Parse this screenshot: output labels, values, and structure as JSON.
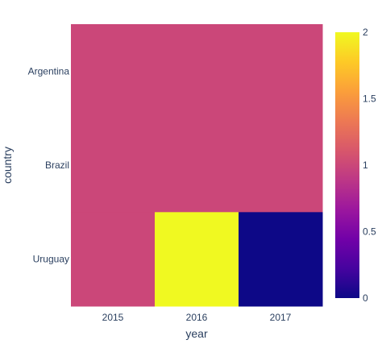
{
  "chart_data": {
    "type": "heatmap",
    "x": [
      "2015",
      "2016",
      "2017"
    ],
    "y": [
      "Argentina",
      "Brazil",
      "Uruguay"
    ],
    "z": [
      [
        1,
        1,
        1
      ],
      [
        1,
        1,
        1
      ],
      [
        1,
        2,
        0
      ]
    ],
    "xlabel": "year",
    "ylabel": "country",
    "zlim": [
      0,
      2
    ],
    "colorbar_ticks": [
      "0",
      "0.5",
      "1",
      "1.5",
      "2"
    ],
    "colorscale": [
      "#0d0887",
      "#46039f",
      "#7201a8",
      "#9c179e",
      "#bd3786",
      "#d8576b",
      "#ed7953",
      "#fb9f3a",
      "#fdca26",
      "#f0f921"
    ],
    "legend": "colorbar-right"
  }
}
